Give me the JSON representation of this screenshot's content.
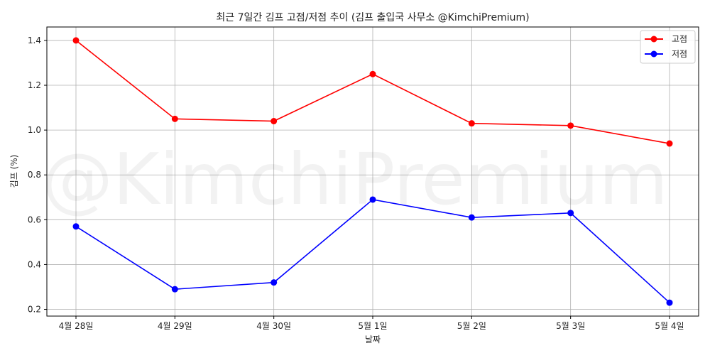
{
  "chart_data": {
    "type": "line",
    "title": "최근 7일간 김프 고점/저점 추이 (김프 출입국 사무소 @KimchiPremium)",
    "xlabel": "날짜",
    "ylabel": "김프 (%)",
    "categories": [
      "4월 28일",
      "4월 29일",
      "4월 30일",
      "5월 1일",
      "5월 2일",
      "5월 3일",
      "5월 4일"
    ],
    "series": [
      {
        "name": "고점",
        "color": "#ff0000",
        "values": [
          1.4,
          1.05,
          1.04,
          1.25,
          1.03,
          1.02,
          0.94
        ]
      },
      {
        "name": "저점",
        "color": "#0000ff",
        "values": [
          0.57,
          0.29,
          0.32,
          0.69,
          0.61,
          0.63,
          0.23
        ]
      }
    ],
    "yticks": [
      "0.2",
      "0.4",
      "0.6",
      "0.8",
      "1.0",
      "1.2",
      "1.4"
    ],
    "ylim": [
      0.17,
      1.46
    ],
    "grid": true,
    "legend": "top-right",
    "watermark": "@KimchiPremium"
  }
}
